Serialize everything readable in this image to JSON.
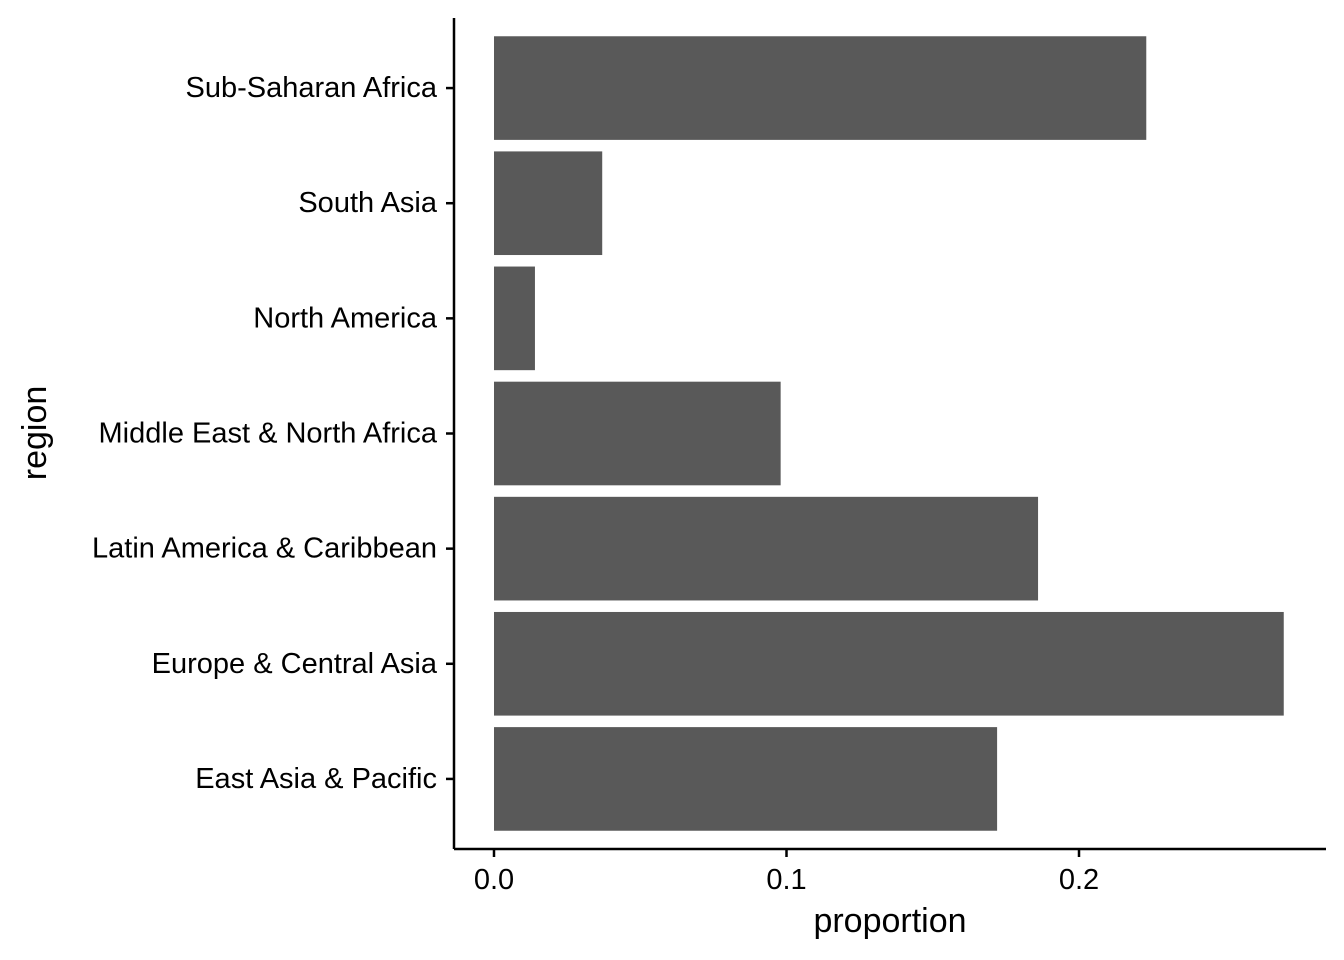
{
  "chart_data": {
    "type": "bar",
    "orientation": "horizontal",
    "title": "",
    "xlabel": "proportion",
    "ylabel": "region",
    "categories": [
      "East Asia & Pacific",
      "Europe & Central Asia",
      "Latin America & Caribbean",
      "Middle East & North Africa",
      "North America",
      "South Asia",
      "Sub-Saharan Africa"
    ],
    "values": [
      0.172,
      0.27,
      0.186,
      0.098,
      0.014,
      0.037,
      0.223
    ],
    "xlim": [
      -0.0135,
      0.284
    ],
    "xticks": [
      0.0,
      0.1,
      0.2
    ],
    "xtick_labels": [
      "0.0",
      "0.1",
      "0.2"
    ],
    "bar_color": "#595959",
    "grid": false,
    "legend": "none"
  }
}
